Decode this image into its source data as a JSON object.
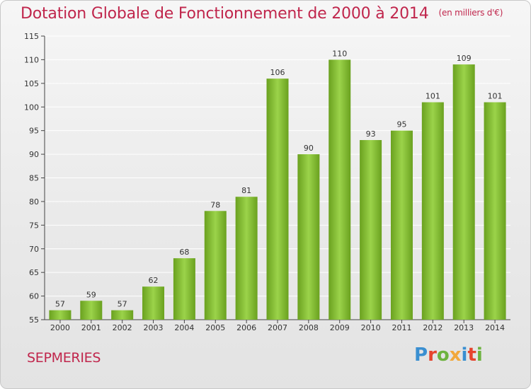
{
  "header": {
    "title": "Dotation Globale de Fonctionnement de 2000 à 2014",
    "subtitle": "(en milliers d'€)"
  },
  "footer": {
    "place": "SEPMERIES",
    "brand": "Proxiti",
    "brand_colors": [
      "#3a8fd1",
      "#e6442e",
      "#6db33f",
      "#f2a83a",
      "#3a8fd1",
      "#e6442e",
      "#6db33f"
    ]
  },
  "colors": {
    "bar_light": "#9bd34a",
    "bar_dark": "#6aa11f",
    "title": "#c0264c",
    "grid": "#ffffff"
  },
  "chart_data": {
    "type": "bar",
    "categories": [
      "2000",
      "2001",
      "2002",
      "2003",
      "2004",
      "2005",
      "2006",
      "2007",
      "2008",
      "2009",
      "2010",
      "2011",
      "2012",
      "2013",
      "2014"
    ],
    "values": [
      57,
      59,
      57,
      62,
      68,
      78,
      81,
      106,
      90,
      110,
      93,
      95,
      101,
      109,
      101
    ],
    "title": "Dotation Globale de Fonctionnement de 2000 à 2014",
    "subtitle": "(en milliers d'€)",
    "ylim": [
      55,
      115
    ],
    "yticks": [
      55,
      60,
      65,
      70,
      75,
      80,
      85,
      90,
      95,
      100,
      105,
      110,
      115
    ],
    "grid": true
  }
}
